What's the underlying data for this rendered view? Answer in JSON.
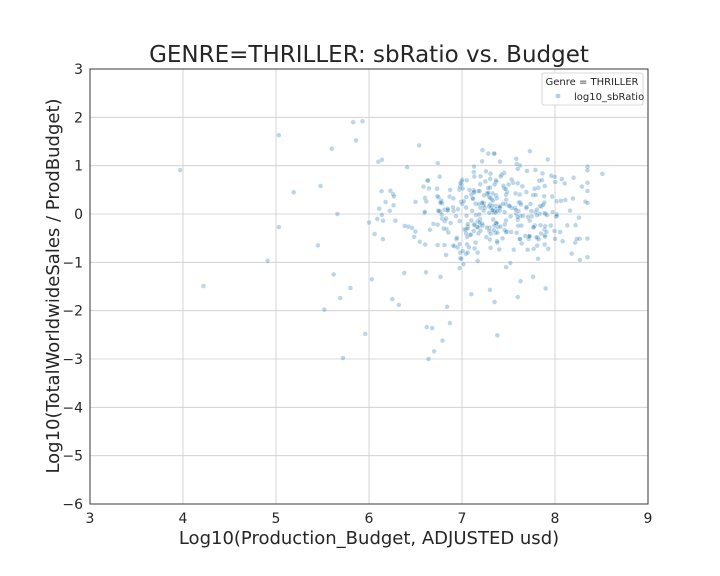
{
  "chart_data": {
    "type": "scatter",
    "title": "GENRE=THRILLER: sbRatio vs. Budget",
    "xlabel": "Log10(Production_Budget, ADJUSTED usd)",
    "ylabel": "Log10(TotalWorldwideSales / ProdBudget)",
    "xlim": [
      3,
      9
    ],
    "ylim": [
      -6,
      3
    ],
    "xticks": [
      3,
      4,
      5,
      6,
      7,
      8,
      9
    ],
    "yticks": [
      -6,
      -5,
      -4,
      -3,
      -2,
      -1,
      0,
      1,
      2,
      3
    ],
    "grid": true,
    "legend": {
      "title": "Genre = THRILLER",
      "placement": "top-right"
    },
    "series": [
      {
        "name": "log10_sbRatio",
        "color": "#1f77b4",
        "outliers": [
          [
            3.97,
            0.91
          ],
          [
            4.22,
            -1.49
          ],
          [
            4.91,
            -0.97
          ],
          [
            5.03,
            1.63
          ],
          [
            5.03,
            -0.27
          ],
          [
            5.19,
            0.45
          ],
          [
            5.45,
            -0.65
          ],
          [
            5.48,
            0.58
          ],
          [
            5.52,
            -1.98
          ],
          [
            5.6,
            1.35
          ],
          [
            5.62,
            -1.25
          ],
          [
            5.66,
            0.0
          ],
          [
            5.69,
            -1.74
          ],
          [
            5.72,
            -2.98
          ],
          [
            5.8,
            -1.53
          ],
          [
            5.83,
            1.9
          ],
          [
            5.86,
            1.52
          ],
          [
            5.93,
            1.92
          ],
          [
            5.96,
            -2.48
          ],
          [
            6.03,
            -1.35
          ],
          [
            6.1,
            1.08
          ],
          [
            6.15,
            -0.52
          ],
          [
            6.23,
            0.48
          ],
          [
            6.25,
            -1.76
          ],
          [
            6.32,
            -1.88
          ],
          [
            6.38,
            -1.22
          ],
          [
            6.41,
            0.97
          ],
          [
            6.5,
            0.25
          ],
          [
            6.54,
            1.42
          ],
          [
            6.62,
            -2.34
          ],
          [
            6.64,
            -3.0
          ],
          [
            6.68,
            -2.36
          ],
          [
            6.7,
            -2.84
          ],
          [
            6.74,
            1.05
          ],
          [
            6.79,
            -2.62
          ],
          [
            6.84,
            -1.92
          ],
          [
            6.87,
            -2.26
          ],
          [
            7.1,
            -1.66
          ],
          [
            7.22,
            1.32
          ],
          [
            7.3,
            -1.57
          ],
          [
            7.35,
            -1.82
          ],
          [
            7.38,
            -2.51
          ],
          [
            7.6,
            -1.72
          ],
          [
            7.63,
            -1.39
          ],
          [
            7.73,
            1.3
          ],
          [
            7.9,
            -1.54
          ],
          [
            8.2,
            0.75
          ],
          [
            8.51,
            0.83
          ]
        ],
        "cluster": {
          "count": 360,
          "x_mean": 7.35,
          "x_sd": 0.5,
          "y_mean": 0.05,
          "y_sd": 0.55,
          "x_range": [
            6.0,
            8.35
          ],
          "y_range": [
            -1.3,
            1.25
          ]
        }
      }
    ]
  }
}
